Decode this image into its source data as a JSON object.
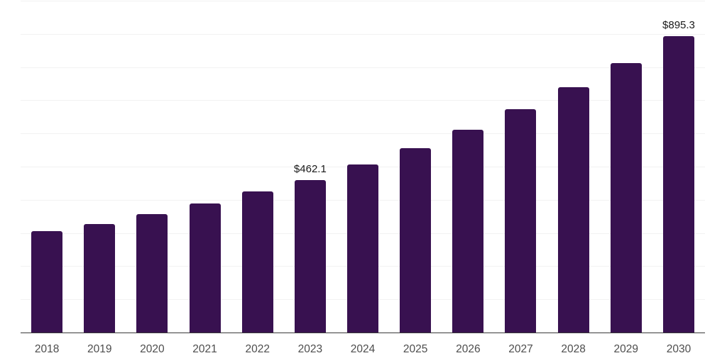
{
  "chart_data": {
    "type": "bar",
    "title": "",
    "xlabel": "",
    "ylabel": "",
    "categories": [
      "2018",
      "2019",
      "2020",
      "2021",
      "2022",
      "2023",
      "2024",
      "2025",
      "2026",
      "2027",
      "2028",
      "2029",
      "2030"
    ],
    "values": [
      308.4,
      328.9,
      359.1,
      390.2,
      427.9,
      462.1,
      507.9,
      558.2,
      613.5,
      674.3,
      741.1,
      814.5,
      895.3
    ],
    "point_labels": [
      "",
      "",
      "",
      "",
      "",
      "$462.1",
      "",
      "",
      "",
      "",
      "",
      "",
      "$895.3"
    ],
    "ylim": [
      0,
      1000
    ],
    "gridline_step": 100,
    "grid": "horizontal-only",
    "legend": "none",
    "y_axis_labels_visible": false,
    "colors": {
      "bar": "#381150",
      "gridline": "#f2f2f2",
      "axis_line": "#3a3a3a",
      "tick_label": "#4d4d4d",
      "data_label": "#1a1a1a",
      "background": "#ffffff"
    }
  }
}
